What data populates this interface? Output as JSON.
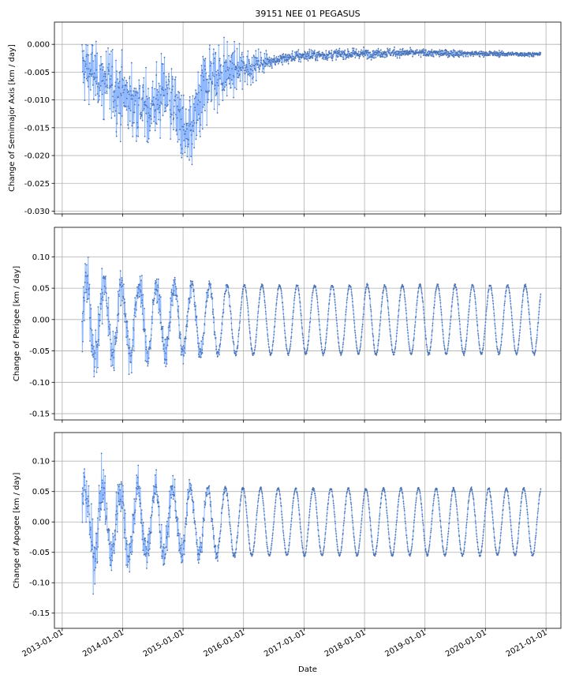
{
  "chart_data": {
    "type": "scatter",
    "title": "39151 NEE 01 PEGASUS",
    "xlabel": "Date",
    "x_ticks": [
      "2013-01-01",
      "2014-01-01",
      "2015-01-01",
      "2016-01-01",
      "2017-01-01",
      "2018-01-01",
      "2019-01-01",
      "2020-01-01",
      "2021-01-01"
    ],
    "x_range": [
      "2012-11-15",
      "2021-04-01"
    ],
    "grid": true,
    "colors": {
      "points": "#4c72b0",
      "lines": "#8fb8ff"
    },
    "panels": [
      {
        "ylabel": "Change of Semimajor Axis [km / day]",
        "ylim": [
          -0.0305,
          0.004
        ],
        "yticks": [
          0.0,
          -0.005,
          -0.01,
          -0.015,
          -0.02,
          -0.025,
          -0.03
        ],
        "ytick_labels": [
          "0.000",
          "-0.005",
          "-0.010",
          "-0.015",
          "-0.020",
          "-0.025",
          "-0.030"
        ],
        "series": {
          "start": "2013-05-01",
          "end": "2020-12-01",
          "trend": [
            [
              "2013-05-01",
              -0.004
            ],
            [
              "2014-06-01",
              -0.012
            ],
            [
              "2014-10-01",
              -0.008
            ],
            [
              "2015-02-01",
              -0.018
            ],
            [
              "2015-06-01",
              -0.006
            ],
            [
              "2016-06-01",
              -0.003
            ],
            [
              "2017-01-01",
              -0.002
            ],
            [
              "2018-06-01",
              -0.0015
            ],
            [
              "2020-12-01",
              -0.0018
            ]
          ],
          "noise": [
            [
              "2013-05-01",
              0.005
            ],
            [
              "2015-06-01",
              0.006
            ],
            [
              "2016-06-01",
              0.001
            ],
            [
              "2020-12-01",
              0.0003
            ]
          ]
        }
      },
      {
        "ylabel": "Change of Perigee [km / day]",
        "ylim": [
          -0.16,
          0.147
        ],
        "yticks": [
          0.1,
          0.05,
          0.0,
          -0.05,
          -0.1,
          -0.15
        ],
        "ytick_labels": [
          "0.10",
          "0.05",
          "0.00",
          "-0.05",
          "-0.10",
          "-0.15"
        ],
        "series": {
          "start": "2013-05-01",
          "end": "2020-12-01",
          "amplitude": 0.055,
          "period_days": 106,
          "noise": [
            [
              "2013-05-01",
              0.04
            ],
            [
              "2015-06-01",
              0.01
            ],
            [
              "2016-01-01",
              0.002
            ],
            [
              "2020-12-01",
              0.002
            ]
          ]
        }
      },
      {
        "ylabel": "Change of Apogee [km / day]",
        "ylim": [
          -0.175,
          0.147
        ],
        "yticks": [
          0.1,
          0.05,
          0.0,
          -0.05,
          -0.1,
          -0.15
        ],
        "ytick_labels": [
          "0.10",
          "0.05",
          "0.00",
          "-0.05",
          "-0.10",
          "-0.15"
        ],
        "series": {
          "start": "2013-05-01",
          "end": "2020-12-01",
          "amplitude": 0.055,
          "period_days": 106,
          "noise": [
            [
              "2013-05-01",
              0.045
            ],
            [
              "2015-06-01",
              0.012
            ],
            [
              "2016-01-01",
              0.002
            ],
            [
              "2020-12-01",
              0.002
            ]
          ]
        }
      }
    ]
  }
}
